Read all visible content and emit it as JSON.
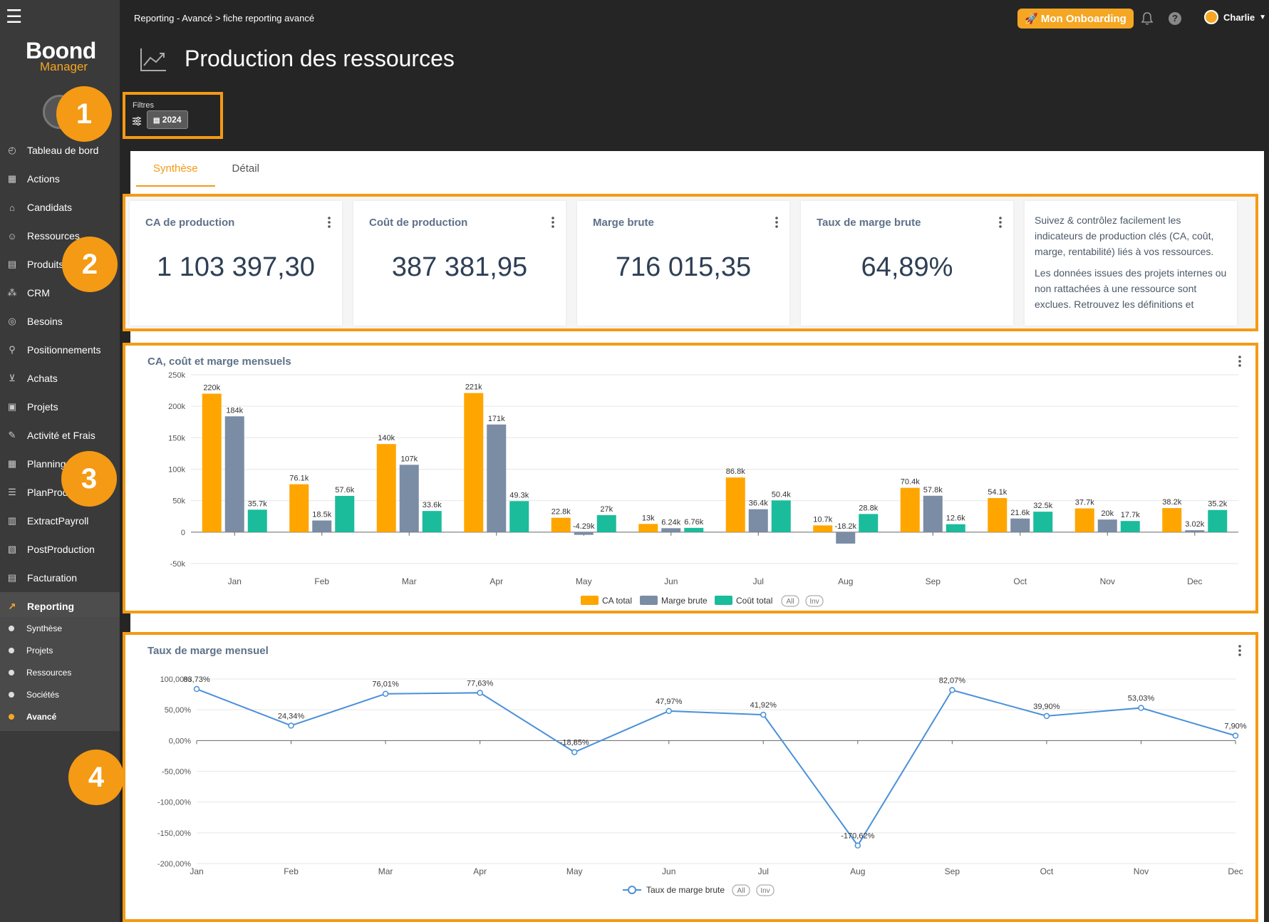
{
  "sidebar": {
    "logo_main": "Boond",
    "logo_sub": "Manager",
    "items": [
      {
        "label": "Tableau de bord",
        "icon": "dashboard-icon"
      },
      {
        "label": "Actions",
        "icon": "actions-icon"
      },
      {
        "label": "Candidats",
        "icon": "graduation-cap-icon"
      },
      {
        "label": "Ressources",
        "icon": "people-icon"
      },
      {
        "label": "Produits",
        "icon": "product-icon"
      },
      {
        "label": "CRM",
        "icon": "crm-icon"
      },
      {
        "label": "Besoins",
        "icon": "target-icon"
      },
      {
        "label": "Positionnements",
        "icon": "pin-icon"
      },
      {
        "label": "Achats",
        "icon": "cart-icon"
      },
      {
        "label": "Projets",
        "icon": "briefcase-icon"
      },
      {
        "label": "Activité et Frais",
        "icon": "activity-icon"
      },
      {
        "label": "Planning",
        "icon": "calendar-icon"
      },
      {
        "label": "PlanProd",
        "icon": "gantt-icon"
      },
      {
        "label": "ExtractPayroll",
        "icon": "payroll-icon"
      },
      {
        "label": "PostProduction",
        "icon": "postprod-icon"
      },
      {
        "label": "Facturation",
        "icon": "invoice-icon"
      },
      {
        "label": "Reporting",
        "icon": "reporting-icon"
      }
    ],
    "subitems": [
      "Synthèse",
      "Projets",
      "Ressources",
      "Sociétés",
      "Avancé"
    ]
  },
  "header": {
    "breadcrumb": "Reporting - Avancé > fiche reporting avancé",
    "onboarding": "🚀 Mon Onboarding",
    "help": "?",
    "user": "Charlie",
    "title": "Production des ressources"
  },
  "filters": {
    "label": "Filtres",
    "year": "2024"
  },
  "tabs": [
    "Synthèse",
    "Détail"
  ],
  "kpis": [
    {
      "title": "CA de production",
      "value": "1 103 397,30"
    },
    {
      "title": "Coût de production",
      "value": "387 381,95"
    },
    {
      "title": "Marge brute",
      "value": "716 015,35"
    },
    {
      "title": "Taux de marge brute",
      "value": "64,89%"
    }
  ],
  "description": {
    "p1": "Suivez & contrôlez facilement les indicateurs de production clés (CA, coût, marge, rentabilité) liés à vos ressources.",
    "p2": "Les données issues des projets internes ou non rattachées à une ressource sont exclues. Retrouvez les définitions et"
  },
  "markers": [
    "1",
    "2",
    "3",
    "4"
  ],
  "colors": {
    "accent": "#f59a14",
    "ca": "#ffa500",
    "marge": "#7b8ca5",
    "cout": "#1abc9c",
    "line": "#4a90d9"
  },
  "chart_data": [
    {
      "type": "bar",
      "title": "CA, coût et marge mensuels",
      "categories": [
        "Jan",
        "Feb",
        "Mar",
        "Apr",
        "May",
        "Jun",
        "Jul",
        "Aug",
        "Sep",
        "Oct",
        "Nov",
        "Dec"
      ],
      "ylim": [
        -50000,
        250000
      ],
      "yticks": [
        "250k",
        "200k",
        "150k",
        "100k",
        "50k",
        "0",
        "-50k"
      ],
      "series": [
        {
          "name": "CA total",
          "values": [
            220000,
            76100,
            140000,
            221000,
            22800,
            13000,
            86800,
            10700,
            70400,
            54100,
            37700,
            38200
          ],
          "labels": [
            "220k",
            "76.1k",
            "140k",
            "221k",
            "22.8k",
            "13k",
            "86.8k",
            "10.7k",
            "70.4k",
            "54.1k",
            "37.7k",
            "38.2k"
          ]
        },
        {
          "name": "Marge brute",
          "values": [
            184000,
            18500,
            107000,
            171000,
            -4290,
            6240,
            36400,
            -18200,
            57800,
            21600,
            20000,
            3020
          ],
          "labels": [
            "184k",
            "18.5k",
            "107k",
            "171k",
            "-4.29k",
            "6.24k",
            "36.4k",
            "-18.2k",
            "57.8k",
            "21.6k",
            "20k",
            "3.02k"
          ]
        },
        {
          "name": "Coût total",
          "values": [
            35700,
            57600,
            33600,
            49300,
            27000,
            6760,
            50400,
            28800,
            12600,
            32500,
            17700,
            35200
          ],
          "labels": [
            "35.7k",
            "57.6k",
            "33.6k",
            "49.3k",
            "27k",
            "6.76k",
            "50.4k",
            "28.8k",
            "12.6k",
            "32.5k",
            "17.7k",
            "35.2k"
          ]
        }
      ],
      "legend_buttons": [
        "All",
        "Inv"
      ],
      "grid": true
    },
    {
      "type": "line",
      "title": "Taux de marge mensuel",
      "categories": [
        "Jan",
        "Feb",
        "Mar",
        "Apr",
        "May",
        "Jun",
        "Jul",
        "Aug",
        "Sep",
        "Oct",
        "Nov",
        "Dec"
      ],
      "ylim": [
        -200,
        100
      ],
      "yticks": [
        "100,00%",
        "50,00%",
        "0,00%",
        "-50,00%",
        "-100,00%",
        "-150,00%",
        "-200,00%"
      ],
      "series": [
        {
          "name": "Taux de marge brute",
          "values": [
            83.73,
            24.34,
            76.01,
            77.63,
            -18.85,
            47.97,
            41.92,
            -170.62,
            82.07,
            39.9,
            53.03,
            7.9
          ],
          "labels": [
            "83,73%",
            "24,34%",
            "76,01%",
            "77,63%",
            "-18,85%",
            "47,97%",
            "41,92%",
            "-170,62%",
            "82,07%",
            "39,90%",
            "53,03%",
            "7,90%"
          ]
        }
      ],
      "legend_buttons": [
        "All",
        "Inv"
      ],
      "grid": true
    }
  ]
}
